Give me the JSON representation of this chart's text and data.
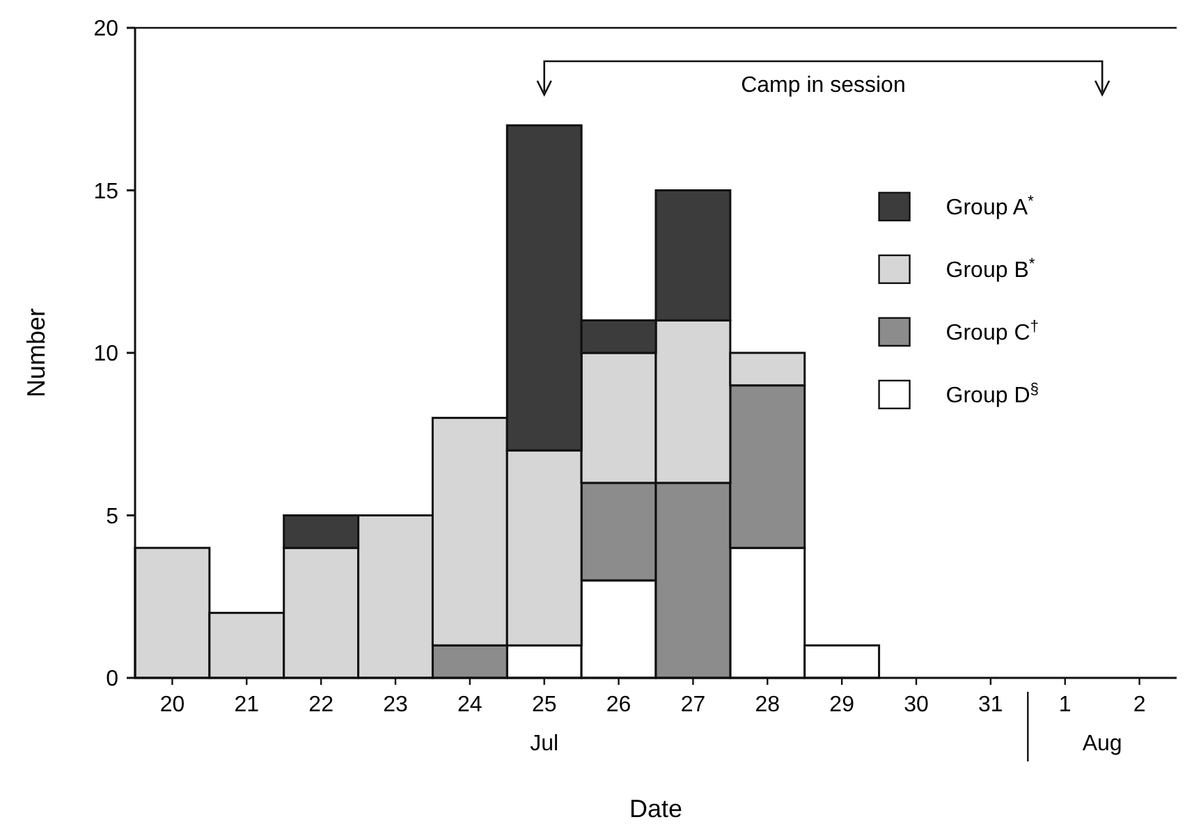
{
  "chart_data": {
    "type": "bar",
    "stacked": true,
    "xlabel": "Date",
    "ylabel": "Number",
    "categories": [
      "20",
      "21",
      "22",
      "23",
      "24",
      "25",
      "26",
      "27",
      "28",
      "29",
      "30",
      "31",
      "1",
      "2"
    ],
    "series": [
      {
        "name": "Group D$^{§}$",
        "color": "#ffffff",
        "values": [
          0,
          0,
          0,
          0,
          0,
          1,
          3,
          0,
          4,
          1,
          0,
          0,
          0,
          0
        ]
      },
      {
        "name": "Group C$^{†}$",
        "color": "#8c8c8c",
        "values": [
          0,
          0,
          0,
          0,
          1,
          0,
          3,
          6,
          5,
          0,
          0,
          0,
          0,
          0
        ]
      },
      {
        "name": "Group B$^{*}$",
        "color": "#d6d6d6",
        "values": [
          4,
          2,
          4,
          5,
          7,
          6,
          4,
          5,
          1,
          0,
          0,
          0,
          0,
          0
        ]
      },
      {
        "name": "Group A$^{*}$",
        "color": "#3c3c3c",
        "values": [
          0,
          0,
          1,
          0,
          0,
          10,
          1,
          4,
          0,
          0,
          0,
          0,
          0,
          0
        ]
      }
    ],
    "ylim": [
      0,
      20
    ],
    "yticks": [
      0,
      5,
      10,
      15,
      20
    ],
    "legend": "right",
    "annotations": [
      "Jul",
      "Aug",
      "Camp in session"
    ]
  }
}
